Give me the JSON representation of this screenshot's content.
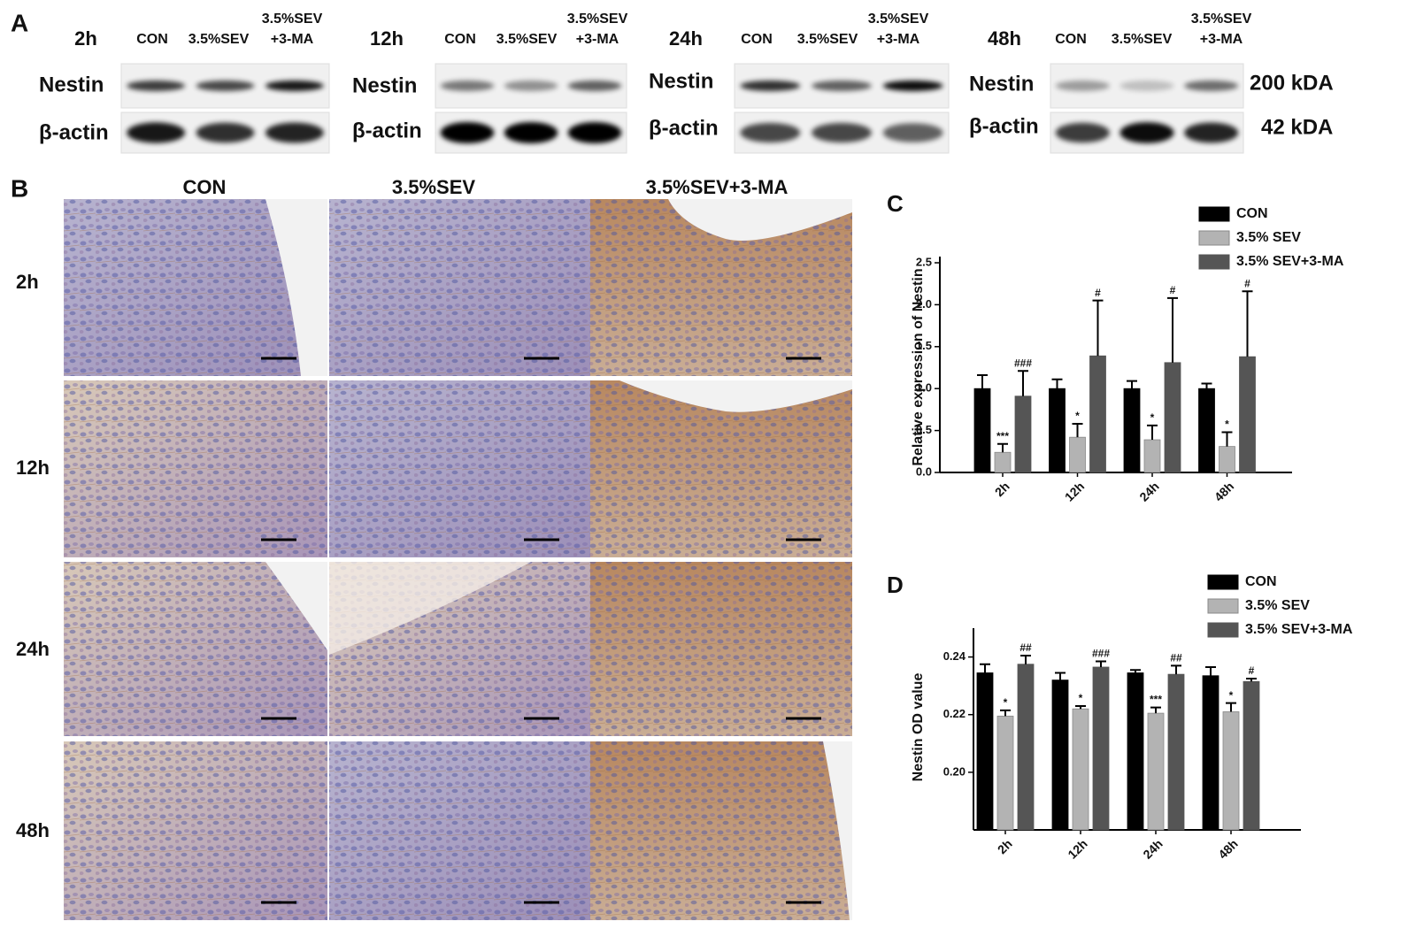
{
  "panel_a": {
    "label": "A",
    "blots": [
      {
        "time": "2h",
        "lanes": [
          "CON",
          "3.5%SEV",
          [
            "3.5%SEV",
            "+3-MA"
          ]
        ],
        "rows": [
          "Nestin",
          "β-actin"
        ]
      },
      {
        "time": "12h",
        "lanes": [
          "CON",
          "3.5%SEV",
          [
            "3.5%SEV",
            "+3-MA"
          ]
        ],
        "rows": [
          "Nestin",
          "β-actin"
        ]
      },
      {
        "time": "24h",
        "lanes": [
          "CON",
          "3.5%SEV",
          [
            "3.5%SEV",
            "+3-MA"
          ]
        ],
        "rows": [
          "Nestin",
          "β-actin"
        ]
      },
      {
        "time": "48h",
        "lanes": [
          "CON",
          "3.5%SEV",
          [
            "3.5%SEV",
            "+3-MA"
          ]
        ],
        "rows": [
          "Nestin",
          "β-actin"
        ]
      }
    ],
    "sizes": [
      "200 kDA",
      "42 kDA"
    ]
  },
  "panel_b": {
    "label": "B",
    "columns": [
      "CON",
      "3.5%SEV",
      "3.5%SEV+3-MA"
    ],
    "rows": [
      "2h",
      "12h",
      "24h",
      "48h"
    ]
  },
  "chart_data": [
    {
      "type": "bar",
      "panel": "C",
      "y_label": "Relative expression of Nestin",
      "categories": [
        "2h",
        "12h",
        "24h",
        "48h"
      ],
      "series": [
        {
          "name": "CON",
          "color": "#000000",
          "values": [
            1.0,
            1.0,
            1.0,
            1.0
          ],
          "errors": [
            0.16,
            0.11,
            0.09,
            0.06
          ]
        },
        {
          "name": "3.5% SEV",
          "color": "#b3b3b3",
          "values": [
            0.24,
            0.42,
            0.39,
            0.31
          ],
          "errors": [
            0.1,
            0.16,
            0.17,
            0.17
          ],
          "annotations": [
            "***",
            "*",
            "*",
            "*"
          ]
        },
        {
          "name": "3.5% SEV+3-MA",
          "color": "#555555",
          "values": [
            0.91,
            1.39,
            1.31,
            1.38
          ],
          "errors": [
            0.3,
            0.66,
            0.77,
            0.78
          ],
          "annotations": [
            "###",
            "#",
            "#",
            "#"
          ]
        }
      ],
      "ylim": [
        0,
        2.5
      ],
      "yticks": [
        {
          "value": 0,
          "label": "0.0"
        },
        {
          "value": 0.5,
          "label": "0.5"
        },
        {
          "value": 1,
          "label": "1.0"
        },
        {
          "value": 1.5,
          "label": "1.5"
        },
        {
          "value": 2,
          "label": "2.0"
        },
        {
          "value": 2.5,
          "label": "2.5"
        }
      ]
    },
    {
      "type": "bar",
      "panel": "D",
      "y_label": "Nestin OD value",
      "categories": [
        "2h",
        "12h",
        "24h",
        "48h"
      ],
      "series": [
        {
          "name": "CON",
          "color": "#000000",
          "values": [
            0.2345,
            0.232,
            0.2345,
            0.2335
          ],
          "errors": [
            0.003,
            0.0025,
            0.001,
            0.003
          ]
        },
        {
          "name": "3.5% SEV",
          "color": "#b3b3b3",
          "values": [
            0.2195,
            0.222,
            0.2205,
            0.221
          ],
          "errors": [
            0.002,
            0.001,
            0.002,
            0.003
          ],
          "annotations": [
            "*",
            "*",
            "***",
            "*"
          ]
        },
        {
          "name": "3.5% SEV+3-MA",
          "color": "#555555",
          "values": [
            0.2375,
            0.2365,
            0.234,
            0.2315
          ],
          "errors": [
            0.003,
            0.002,
            0.003,
            0.001
          ],
          "annotations": [
            "##",
            "###",
            "##",
            "#"
          ]
        }
      ],
      "ylim": [
        0.18,
        0.25
      ],
      "yticks": [
        {
          "value": 0.2,
          "label": "0.20"
        },
        {
          "value": 0.22,
          "label": "0.22"
        },
        {
          "value": 0.24,
          "label": "0.24"
        }
      ]
    }
  ]
}
